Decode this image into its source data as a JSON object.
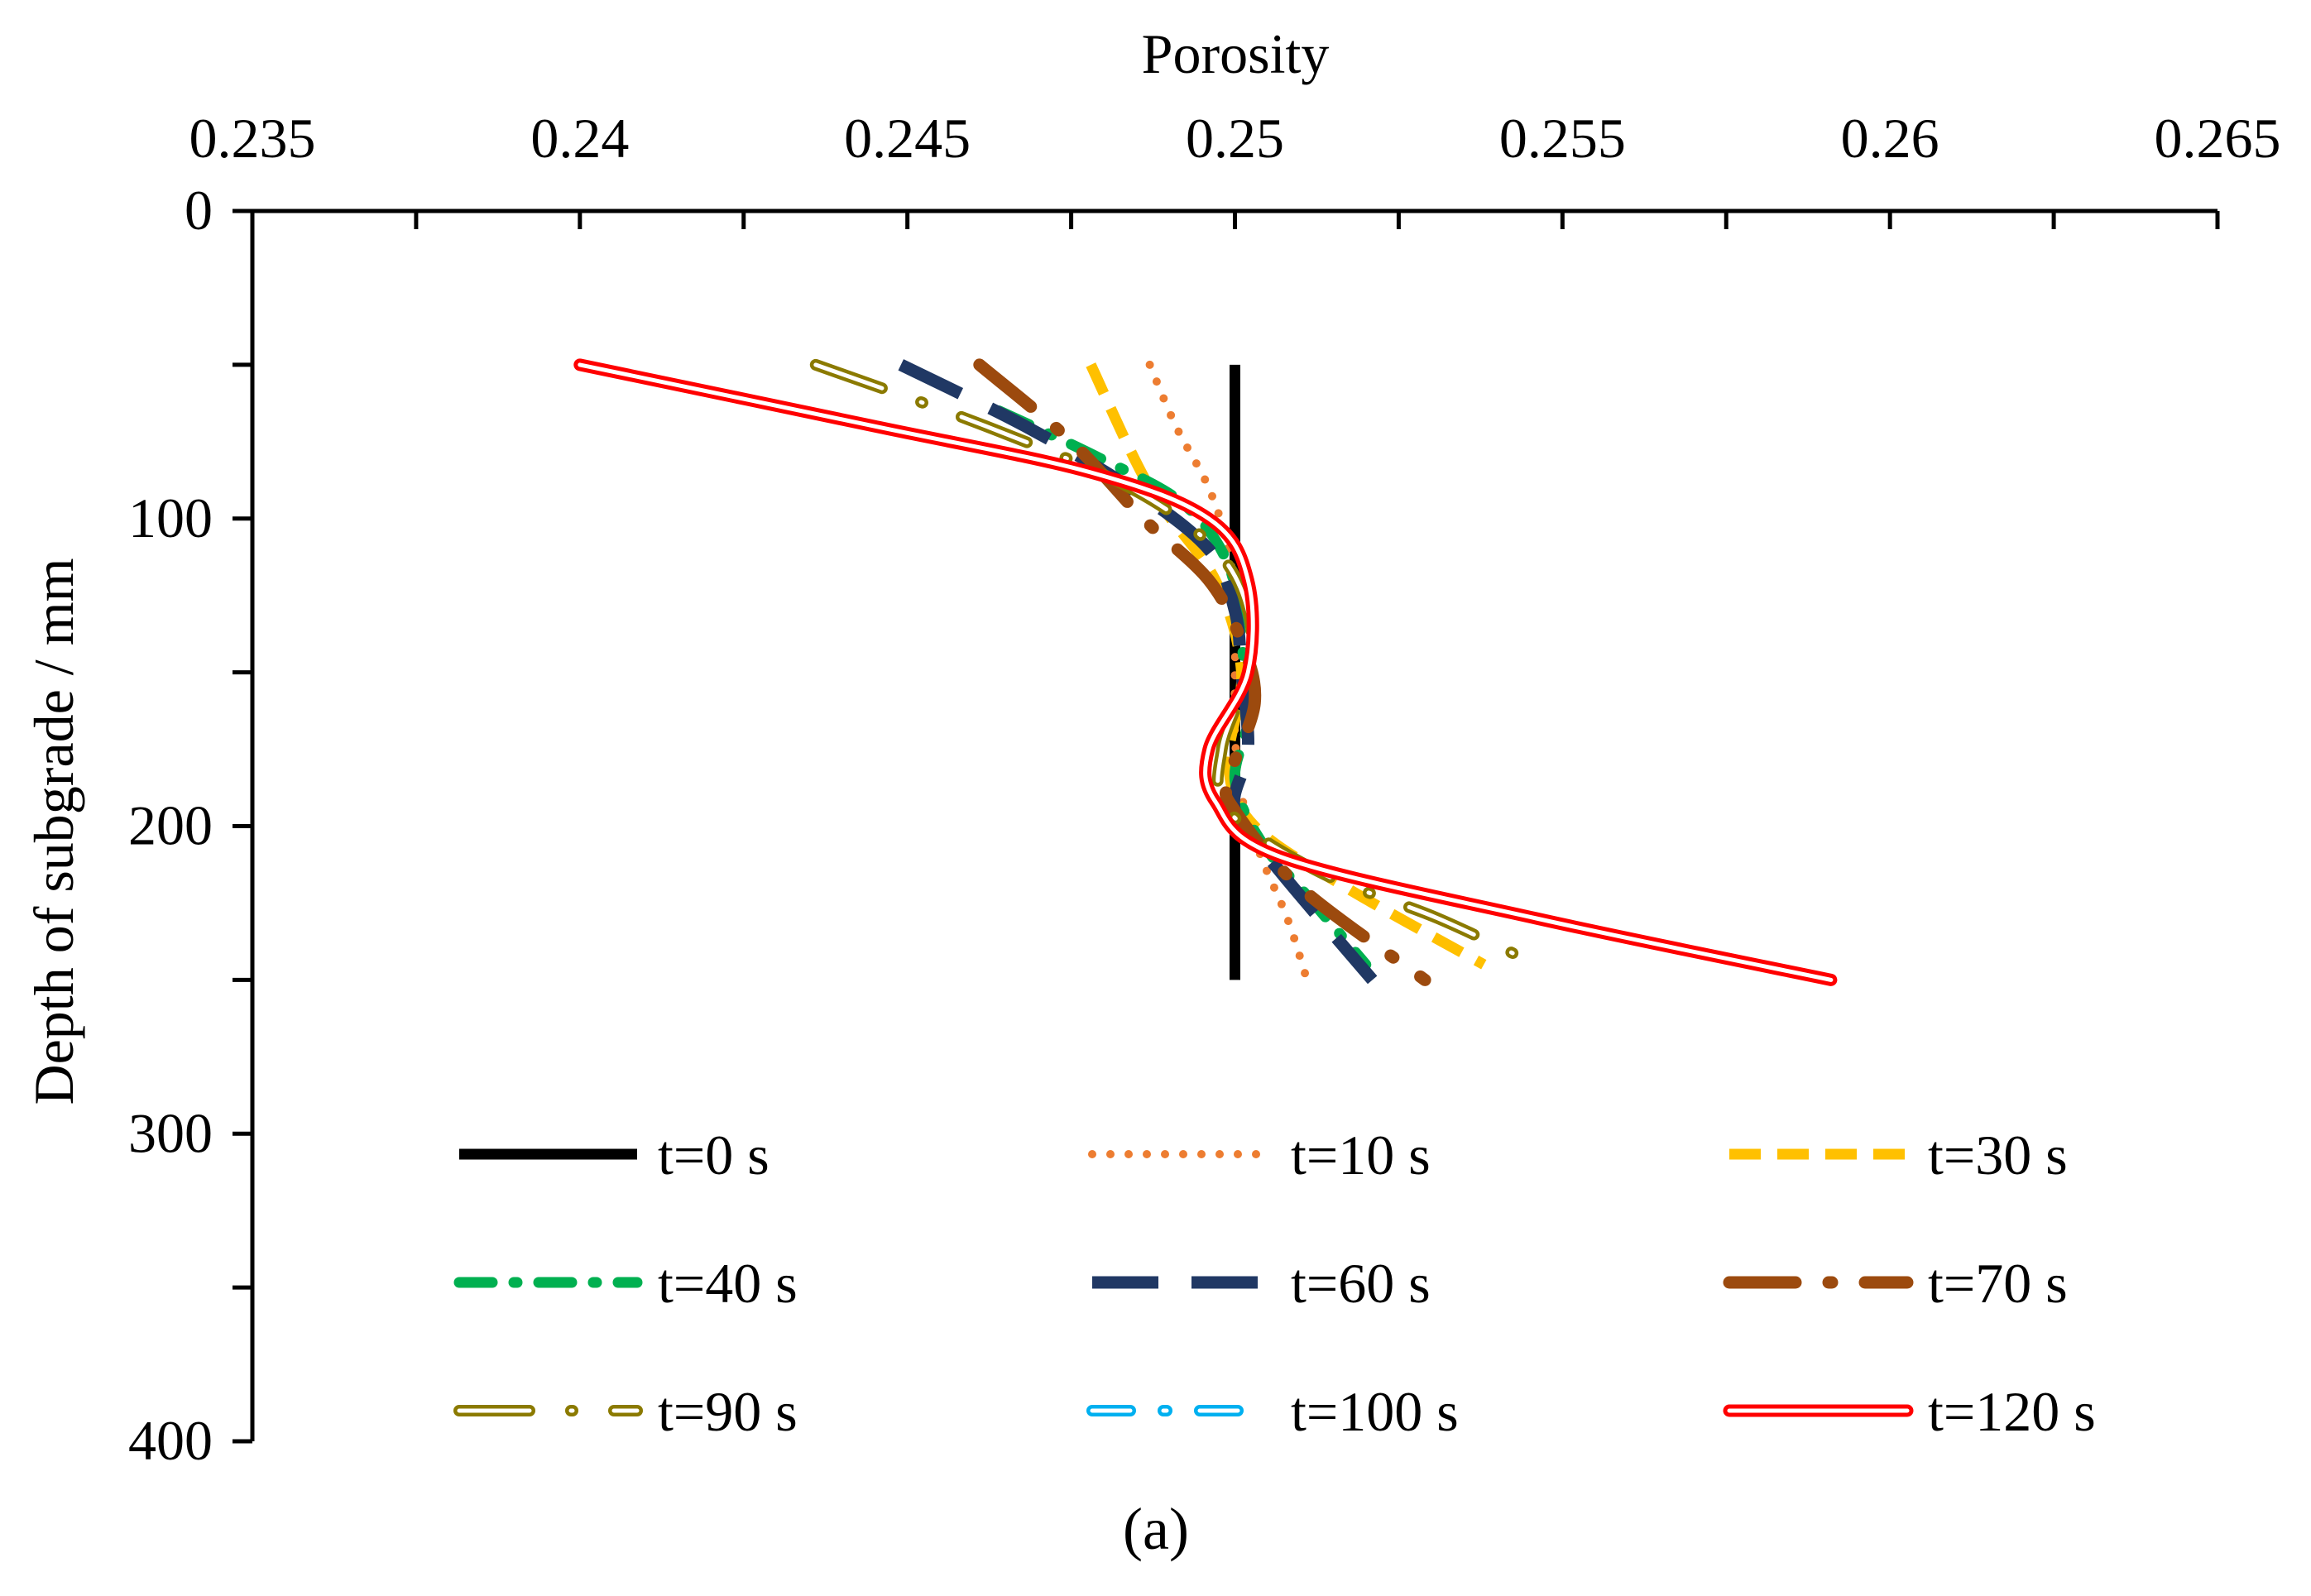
{
  "chart_data": {
    "type": "line",
    "x_axis": {
      "label": "Porosity",
      "position": "top",
      "range": [
        0.235,
        0.265
      ],
      "major_ticks": [
        0.235,
        0.24,
        0.245,
        0.25,
        0.255,
        0.26,
        0.265
      ],
      "tick_labels": [
        "0.235",
        "0.24",
        "0.245",
        "0.25",
        "0.255",
        "0.26",
        "0.265"
      ]
    },
    "y_axis": {
      "label": "Depth of subgrade / mm",
      "range": [
        0,
        400
      ],
      "inverted": true,
      "major_ticks": [
        0,
        100,
        200,
        300,
        400
      ],
      "tick_labels": [
        "0",
        "100",
        "200",
        "300",
        "400"
      ]
    },
    "grid": false,
    "legend_position": "bottom-inside",
    "panel_label": "(a)",
    "series": [
      {
        "name": "t=0 s",
        "color": "#000000",
        "style": "solid-thick",
        "points": [
          [
            0.25,
            50
          ],
          [
            0.25,
            100
          ],
          [
            0.25,
            150
          ],
          [
            0.25,
            200
          ],
          [
            0.25,
            250
          ]
        ]
      },
      {
        "name": "t=10 s",
        "color": "#ED7D31",
        "style": "dotted",
        "points": [
          [
            0.2487,
            50
          ],
          [
            0.2491,
            70
          ],
          [
            0.2496,
            90
          ],
          [
            0.2499,
            110
          ],
          [
            0.25,
            130
          ],
          [
            0.25,
            150
          ],
          [
            0.25,
            170
          ],
          [
            0.2501,
            190
          ],
          [
            0.2504,
            210
          ],
          [
            0.2508,
            230
          ],
          [
            0.2511,
            250
          ]
        ]
      },
      {
        "name": "t=30 s",
        "color": "#FFC000",
        "style": "dashed",
        "points": [
          [
            0.2478,
            50
          ],
          [
            0.2487,
            90
          ],
          [
            0.2497,
            120
          ],
          [
            0.2501,
            150
          ],
          [
            0.2499,
            180
          ],
          [
            0.2503,
            200
          ],
          [
            0.2517,
            220
          ],
          [
            0.2538,
            245
          ]
        ]
      },
      {
        "name": "t=40 s",
        "color": "#00B050",
        "style": "dash-dot",
        "points": [
          [
            0.2464,
            65
          ],
          [
            0.2479,
            80
          ],
          [
            0.2492,
            95
          ],
          [
            0.2499,
            115
          ],
          [
            0.2501,
            140
          ],
          [
            0.2502,
            165
          ],
          [
            0.25,
            185
          ],
          [
            0.2504,
            205
          ],
          [
            0.2512,
            225
          ],
          [
            0.252,
            245
          ]
        ]
      },
      {
        "name": "t=60 s",
        "color": "#203864",
        "style": "long-dash",
        "points": [
          [
            0.2449,
            50
          ],
          [
            0.2468,
            70
          ],
          [
            0.2484,
            90
          ],
          [
            0.2496,
            110
          ],
          [
            0.25,
            130
          ],
          [
            0.2501,
            150
          ],
          [
            0.2502,
            175
          ],
          [
            0.25,
            195
          ],
          [
            0.2507,
            215
          ],
          [
            0.2521,
            250
          ]
        ]
      },
      {
        "name": "t=70 s",
        "color": "#9C4A0E",
        "style": "dash-dot-thick",
        "points": [
          [
            0.2461,
            50
          ],
          [
            0.2475,
            75
          ],
          [
            0.2486,
            100
          ],
          [
            0.2496,
            120
          ],
          [
            0.2501,
            140
          ],
          [
            0.2503,
            160
          ],
          [
            0.2499,
            185
          ],
          [
            0.25,
            195
          ],
          [
            0.251,
            220
          ],
          [
            0.2529,
            250
          ]
        ]
      },
      {
        "name": "t=90 s",
        "color": "#8B7A00",
        "style": "double-dash-dot",
        "points": [
          [
            0.2436,
            50
          ],
          [
            0.2462,
            70
          ],
          [
            0.2484,
            90
          ],
          [
            0.2497,
            110
          ],
          [
            0.2502,
            130
          ],
          [
            0.2502,
            150
          ],
          [
            0.2498,
            175
          ],
          [
            0.2499,
            195
          ],
          [
            0.2513,
            215
          ],
          [
            0.2531,
            230
          ],
          [
            0.2546,
            245
          ]
        ]
      },
      {
        "name": "t=100 s",
        "color": "#00B0F0",
        "style": "double-dash",
        "points": [
          [
            0.24,
            50
          ],
          [
            0.2445,
            70
          ],
          [
            0.2478,
            85
          ],
          [
            0.2496,
            100
          ],
          [
            0.2502,
            120
          ],
          [
            0.2502,
            150
          ],
          [
            0.2496,
            175
          ],
          [
            0.2497,
            192
          ],
          [
            0.2507,
            210
          ],
          [
            0.2546,
            230
          ],
          [
            0.2591,
            250
          ]
        ]
      },
      {
        "name": "t=120 s",
        "color": "#FF0000",
        "style": "double-solid",
        "points": [
          [
            0.24,
            50
          ],
          [
            0.2445,
            70
          ],
          [
            0.2478,
            85
          ],
          [
            0.2496,
            100
          ],
          [
            0.2502,
            120
          ],
          [
            0.2502,
            150
          ],
          [
            0.2496,
            175
          ],
          [
            0.2497,
            192
          ],
          [
            0.2507,
            210
          ],
          [
            0.2546,
            230
          ],
          [
            0.2591,
            250
          ]
        ]
      }
    ]
  }
}
